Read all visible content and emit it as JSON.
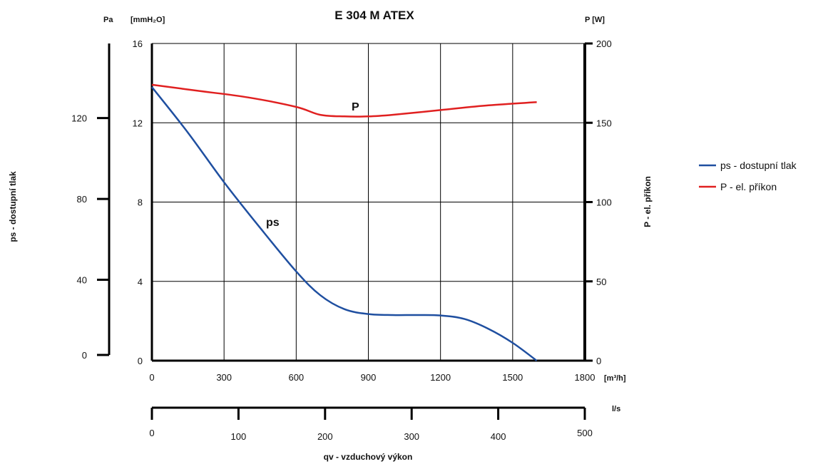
{
  "chart_data": {
    "type": "line",
    "title": "E 304 M ATEX",
    "x_axis": {
      "unit": "[m³/h]",
      "ticks": [
        "0",
        "300",
        "600",
        "900",
        "1200",
        "1500",
        "1800"
      ],
      "range": [
        0,
        1800
      ],
      "grid": true
    },
    "x2_axis": {
      "unit": "l/s",
      "ticks": [
        "0",
        "100",
        "200",
        "300",
        "400",
        "500"
      ],
      "range": [
        0,
        500
      ]
    },
    "xlabel": "qv - vzduchový výkon",
    "y_left_inner": {
      "unit": "[mmH₂O]",
      "ticks": [
        "0",
        "4",
        "8",
        "12",
        "16"
      ],
      "range": [
        0,
        16
      ]
    },
    "y_left_outer": {
      "unit": "Pa",
      "ticks": [
        "0",
        "40",
        "80",
        "120"
      ],
      "range": [
        0,
        156.9
      ]
    },
    "ylabel_left": "ps - dostupní tlak",
    "y_right": {
      "unit": "P [W]",
      "ticks": [
        "0",
        "50",
        "100",
        "150",
        "200"
      ],
      "range": [
        0,
        200
      ]
    },
    "ylabel_right": "P - el. příkon",
    "series": [
      {
        "name": "ps - dostupní tlak",
        "label": "ps",
        "color": "#1f4fa0",
        "axis": "mmH2O",
        "x": [
          0,
          150,
          300,
          450,
          600,
          700,
          800,
          900,
          1000,
          1100,
          1200,
          1300,
          1400,
          1500,
          1600
        ],
        "y": [
          13.8,
          11.5,
          9.0,
          6.7,
          4.5,
          3.3,
          2.6,
          2.35,
          2.3,
          2.3,
          2.28,
          2.1,
          1.6,
          0.9,
          0
        ]
      },
      {
        "name": "P - el. příkon",
        "label": "P",
        "color": "#e02020",
        "axis": "W",
        "x": [
          0,
          200,
          400,
          600,
          700,
          800,
          900,
          1000,
          1200,
          1400,
          1600
        ],
        "y": [
          174,
          170,
          166,
          160,
          155,
          154,
          154,
          155,
          158,
          161,
          163
        ]
      }
    ],
    "legend": {
      "position": "right"
    }
  }
}
